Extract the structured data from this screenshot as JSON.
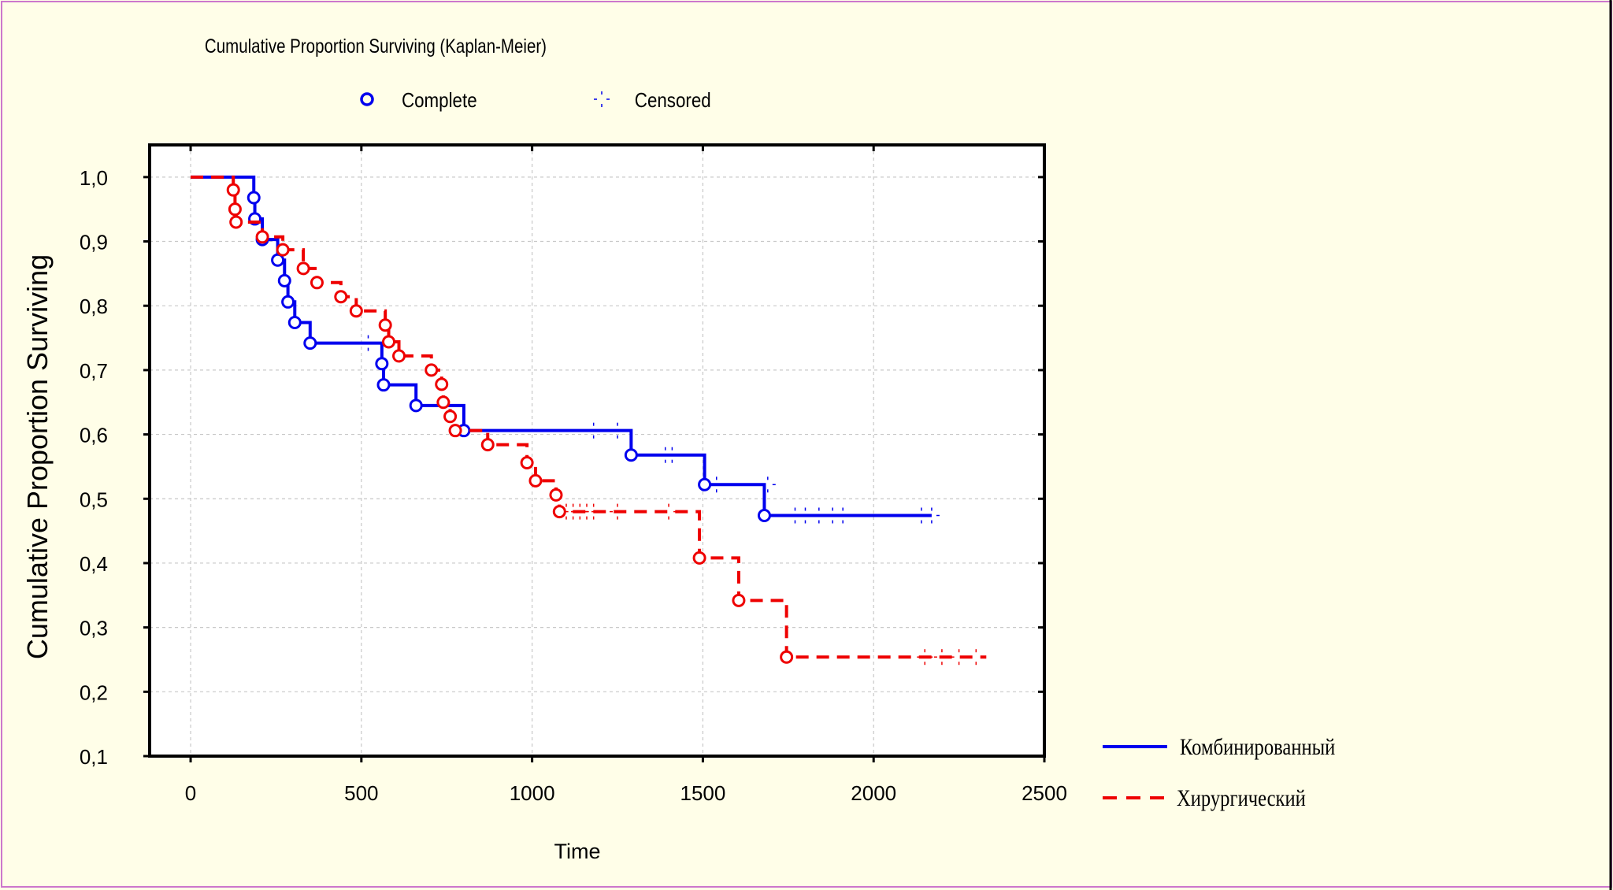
{
  "chart_data": {
    "type": "line",
    "title": "Cumulative Proportion Surviving (Kaplan-Meier)",
    "xlabel": "Time",
    "ylabel": "Cumulative Proportion Surviving",
    "xlim": [
      -120,
      2500
    ],
    "ylim": [
      0.1,
      1.05
    ],
    "x_ticks": [
      0,
      500,
      1000,
      1500,
      2000,
      2500
    ],
    "x_tick_labels": [
      "0",
      "500",
      "1000",
      "1500",
      "2000",
      "2500"
    ],
    "y_ticks": [
      0.1,
      0.2,
      0.3,
      0.4,
      0.5,
      0.6,
      0.7,
      0.8,
      0.9,
      1.0
    ],
    "y_tick_labels": [
      "0,1",
      "0,2",
      "0,3",
      "0,4",
      "0,5",
      "0,6",
      "0,7",
      "0,8",
      "0,9",
      "1,0"
    ],
    "grid": true,
    "marker_legend": {
      "complete_label": "Complete",
      "censored_label": "Censored"
    },
    "series": [
      {
        "name": "Комбинированный",
        "color": "#0000ee",
        "dash": "solid",
        "steps": [
          [
            0,
            1.0
          ],
          [
            185,
            0.968
          ],
          [
            188,
            0.935
          ],
          [
            210,
            0.903
          ],
          [
            255,
            0.871
          ],
          [
            275,
            0.839
          ],
          [
            285,
            0.806
          ],
          [
            305,
            0.774
          ],
          [
            350,
            0.742
          ],
          [
            560,
            0.71
          ],
          [
            565,
            0.677
          ],
          [
            660,
            0.645
          ],
          [
            800,
            0.606
          ],
          [
            1290,
            0.568
          ],
          [
            1505,
            0.522
          ],
          [
            1680,
            0.474
          ],
          [
            2170,
            0.474
          ]
        ],
        "events": [
          [
            185,
            0.968
          ],
          [
            188,
            0.935
          ],
          [
            210,
            0.903
          ],
          [
            255,
            0.871
          ],
          [
            275,
            0.839
          ],
          [
            285,
            0.806
          ],
          [
            305,
            0.774
          ],
          [
            350,
            0.742
          ],
          [
            560,
            0.71
          ],
          [
            565,
            0.677
          ],
          [
            660,
            0.645
          ],
          [
            800,
            0.606
          ],
          [
            1290,
            0.568
          ],
          [
            1505,
            0.522
          ],
          [
            1680,
            0.474
          ]
        ],
        "censored": [
          [
            520,
            0.742
          ],
          [
            1180,
            0.606
          ],
          [
            1250,
            0.606
          ],
          [
            1390,
            0.568
          ],
          [
            1410,
            0.568
          ],
          [
            1540,
            0.522
          ],
          [
            1690,
            0.522
          ],
          [
            1770,
            0.474
          ],
          [
            1800,
            0.474
          ],
          [
            1840,
            0.474
          ],
          [
            1880,
            0.474
          ],
          [
            1910,
            0.474
          ],
          [
            2140,
            0.474
          ],
          [
            2170,
            0.474
          ]
        ]
      },
      {
        "name": "Хирургический",
        "color": "#ee0000",
        "dash": "dashed",
        "steps": [
          [
            0,
            1.0
          ],
          [
            125,
            0.98
          ],
          [
            130,
            0.95
          ],
          [
            133,
            0.93
          ],
          [
            210,
            0.907
          ],
          [
            270,
            0.887
          ],
          [
            330,
            0.858
          ],
          [
            370,
            0.836
          ],
          [
            440,
            0.814
          ],
          [
            485,
            0.792
          ],
          [
            570,
            0.77
          ],
          [
            580,
            0.744
          ],
          [
            610,
            0.722
          ],
          [
            705,
            0.7
          ],
          [
            735,
            0.678
          ],
          [
            740,
            0.65
          ],
          [
            760,
            0.628
          ],
          [
            775,
            0.606
          ],
          [
            870,
            0.584
          ],
          [
            985,
            0.556
          ],
          [
            1010,
            0.528
          ],
          [
            1070,
            0.506
          ],
          [
            1080,
            0.48
          ],
          [
            1490,
            0.408
          ],
          [
            1605,
            0.342
          ],
          [
            1745,
            0.254
          ],
          [
            2330,
            0.254
          ]
        ],
        "events": [
          [
            125,
            0.98
          ],
          [
            130,
            0.95
          ],
          [
            133,
            0.93
          ],
          [
            210,
            0.907
          ],
          [
            270,
            0.887
          ],
          [
            330,
            0.858
          ],
          [
            370,
            0.836
          ],
          [
            440,
            0.814
          ],
          [
            485,
            0.792
          ],
          [
            570,
            0.77
          ],
          [
            580,
            0.744
          ],
          [
            610,
            0.722
          ],
          [
            705,
            0.7
          ],
          [
            735,
            0.678
          ],
          [
            740,
            0.65
          ],
          [
            760,
            0.628
          ],
          [
            775,
            0.606
          ],
          [
            870,
            0.584
          ],
          [
            985,
            0.556
          ],
          [
            1010,
            0.528
          ],
          [
            1070,
            0.506
          ],
          [
            1080,
            0.48
          ],
          [
            1490,
            0.408
          ],
          [
            1605,
            0.342
          ],
          [
            1745,
            0.254
          ]
        ],
        "censored": [
          [
            1100,
            0.48
          ],
          [
            1120,
            0.48
          ],
          [
            1140,
            0.48
          ],
          [
            1160,
            0.48
          ],
          [
            1180,
            0.48
          ],
          [
            1250,
            0.48
          ],
          [
            1400,
            0.48
          ],
          [
            2150,
            0.254
          ],
          [
            2200,
            0.254
          ],
          [
            2250,
            0.254
          ],
          [
            2300,
            0.254
          ]
        ]
      }
    ]
  }
}
